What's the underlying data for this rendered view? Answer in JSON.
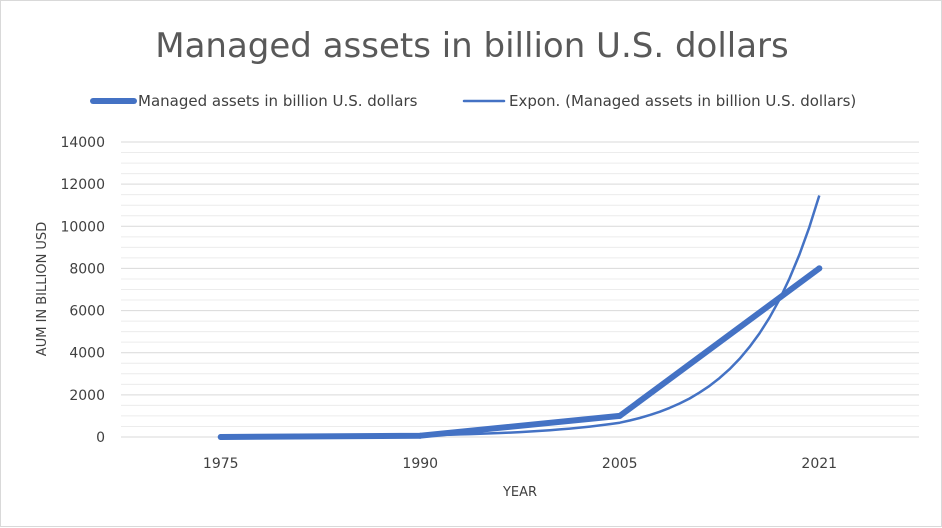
{
  "chart_data": {
    "type": "line",
    "title": "Managed assets in billion U.S. dollars",
    "xlabel": "YEAR",
    "ylabel": "AUM IN BILLION USD",
    "categories": [
      "1975",
      "1990",
      "2005",
      "2021"
    ],
    "ylim": [
      0,
      14000
    ],
    "yticks": [
      0,
      2000,
      4000,
      6000,
      8000,
      10000,
      12000,
      14000
    ],
    "series": [
      {
        "name": "Managed assets in billion U.S. dollars",
        "values": [
          0,
          60,
          1000,
          8000
        ],
        "color": "#4472c4",
        "style": "thick"
      },
      {
        "name": "Expon. (Managed assets in billion U.S. dollars)",
        "trendline": "exponential",
        "values": [
          9.5,
          81,
          681,
          11460
        ],
        "color": "#4472c4",
        "style": "thin"
      }
    ],
    "legend_position": "top",
    "grid": true
  }
}
